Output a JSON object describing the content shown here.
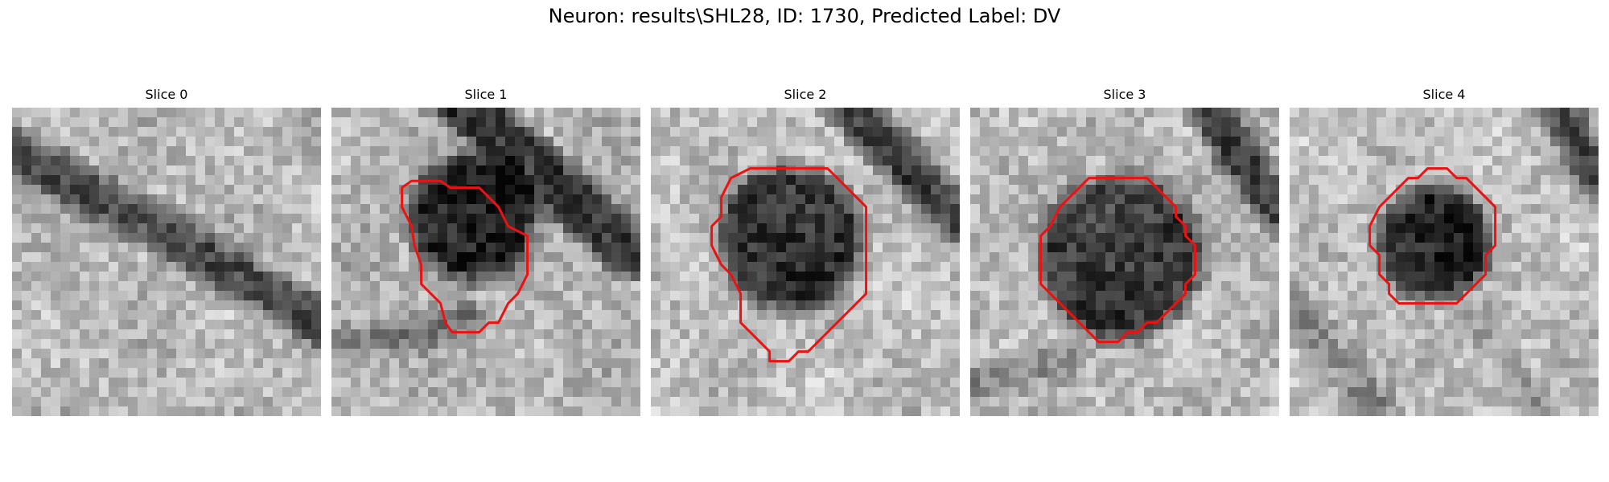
{
  "figure": {
    "title": "Neuron: results\\SHL28, ID: 1730, Predicted Label: DV",
    "contour_color": "#ee1111"
  },
  "slices": [
    {
      "label": "Slice 0"
    },
    {
      "label": "Slice 1"
    },
    {
      "label": "Slice 2"
    },
    {
      "label": "Slice 3"
    },
    {
      "label": "Slice 4"
    }
  ]
}
